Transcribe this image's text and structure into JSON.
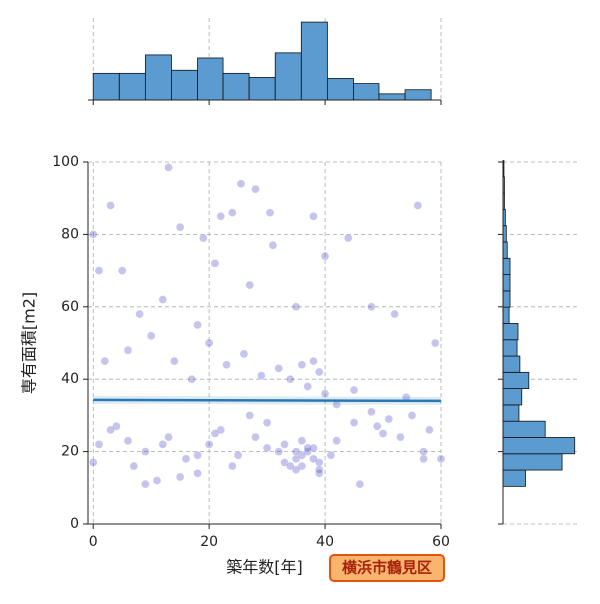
{
  "chart_data": [
    {
      "type": "scatter",
      "x_label": "築年数[年]",
      "y_label": "専有面積[m2]",
      "color": "#3b3bc4",
      "x": [
        13,
        25.5,
        28,
        30.5,
        3,
        22,
        24,
        31,
        38,
        44,
        21,
        15,
        19,
        5,
        1,
        0,
        8,
        12,
        18,
        27,
        35,
        40,
        48,
        52,
        56,
        59,
        2,
        6,
        10,
        14,
        17,
        20,
        23,
        26,
        29,
        32,
        34,
        36,
        37,
        38,
        39,
        40,
        33,
        35,
        36,
        37,
        39,
        41,
        45,
        50,
        55,
        58,
        1,
        4,
        7,
        9,
        11,
        13,
        16,
        18,
        20,
        22,
        25,
        28,
        30,
        32,
        35,
        38,
        42,
        46,
        49,
        53,
        57,
        0,
        3,
        6,
        9,
        12,
        15,
        18,
        21,
        24,
        27,
        30,
        33,
        36,
        39,
        42,
        45,
        48,
        51,
        54,
        57,
        60,
        34,
        36,
        38,
        37,
        35,
        39
      ],
      "values": [
        98.5,
        94,
        92.5,
        86,
        88,
        85,
        86,
        77,
        85,
        79,
        72,
        82,
        79,
        70,
        70,
        80,
        58,
        62,
        55,
        66,
        60,
        74,
        60,
        58,
        88,
        50,
        45,
        48,
        52,
        45,
        40,
        50,
        44,
        47,
        41,
        43,
        40,
        44,
        38,
        45,
        42,
        36,
        22,
        18,
        16,
        20,
        17,
        19,
        28,
        25,
        30,
        26,
        22,
        27,
        16,
        20,
        12,
        24,
        18,
        14,
        22,
        26,
        19,
        24,
        28,
        20,
        15,
        21,
        23,
        11,
        27,
        24,
        18,
        17,
        26,
        23,
        11,
        22,
        13,
        19,
        25,
        16,
        30,
        21,
        17,
        23,
        14,
        33,
        37,
        31,
        29,
        35,
        20,
        18,
        16,
        19,
        18,
        21,
        20,
        15
      ],
      "regression": {
        "color": "#2878b5",
        "x": [
          0,
          60
        ],
        "values": [
          34.3,
          34.0
        ],
        "ci_lower": [
          33.2,
          32.9
        ],
        "ci_upper": [
          35.4,
          35.1
        ]
      },
      "xlim": [
        -0.9,
        60
      ],
      "ylim": [
        0,
        100
      ],
      "xticks": [
        0,
        20,
        40,
        60
      ],
      "yticks": [
        0,
        20,
        40,
        60,
        80,
        100
      ],
      "grid": true,
      "label": "横浜市鶴見区"
    },
    {
      "type": "histogram",
      "orientation": "vertical",
      "color": "#5b9bd0",
      "bins": [
        0,
        4.5,
        9,
        13.5,
        18,
        22.4,
        26.9,
        31.4,
        35.9,
        40.4,
        44.9,
        49.3,
        53.8,
        58.3
      ],
      "values": [
        52,
        52,
        88,
        58,
        82,
        52,
        44,
        92,
        152,
        42,
        32,
        12,
        20
      ],
      "ylim": [
        0,
        160
      ]
    },
    {
      "type": "histogram",
      "orientation": "horizontal",
      "color": "#5b9bd0",
      "bins": [
        10.4,
        14.9,
        19.4,
        23.9,
        28.4,
        32.9,
        37.4,
        41.9,
        46.4,
        50.9,
        55.4,
        59.9,
        64.4,
        68.9,
        73.4,
        77.9,
        82.4,
        86.9,
        91.4,
        95.9,
        100.4
      ],
      "values": [
        48,
        126,
        153,
        90,
        34,
        40,
        55,
        36,
        30,
        32,
        13,
        15,
        15,
        15,
        9,
        7,
        5,
        3,
        3,
        2
      ],
      "xlim": [
        0,
        160
      ]
    }
  ]
}
